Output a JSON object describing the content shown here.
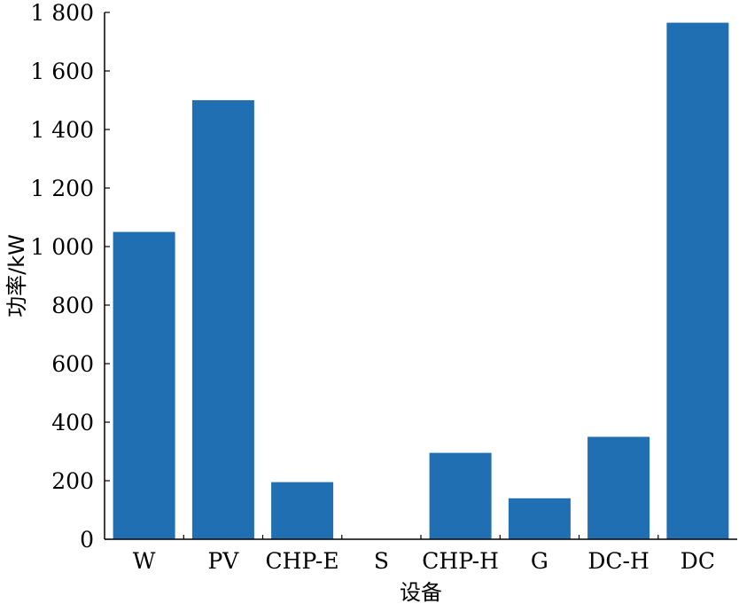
{
  "chart_data": {
    "type": "bar",
    "categories": [
      "W",
      "PV",
      "CHP-E",
      "S",
      "CHP-H",
      "G",
      "DC-H",
      "DC"
    ],
    "values": [
      1050,
      1500,
      195,
      0,
      295,
      140,
      350,
      1765
    ],
    "xlabel": "设备",
    "ylabel": "功率/kW",
    "ylim": [
      0,
      1800
    ],
    "yticks": [
      0,
      200,
      400,
      600,
      800,
      1000,
      1200,
      1400,
      1600,
      1800
    ],
    "ytick_labels": [
      "0",
      "200",
      "400",
      "600",
      "800",
      "1 000",
      "1 200",
      "1 400",
      "1 600",
      "1 800"
    ],
    "grid": false,
    "bar_color": "#1f6fb2"
  }
}
